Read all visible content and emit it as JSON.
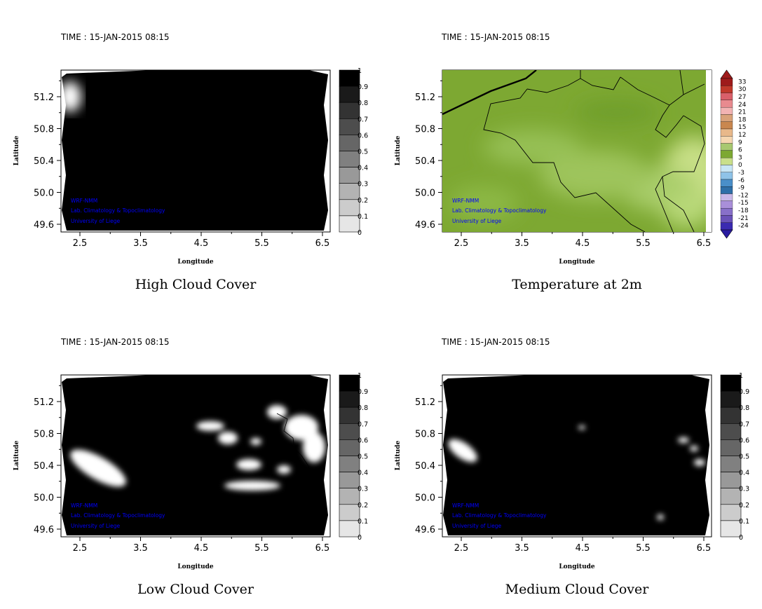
{
  "colors": {
    "background": "#ffffff",
    "cloud_black": "#000000",
    "temperature_field": "#7da832",
    "watermark": "#0000ff"
  },
  "watermark": {
    "line1": "WRF-NMM",
    "line2": "Lab. Climatology & Topoclimatology",
    "line3": "University of Liege"
  },
  "panels": [
    {
      "time_label": "TIME : 15-JAN-2015 08:15",
      "title": "High Cloud Cover",
      "xlabel": "Longitude",
      "ylabel": "Latitude",
      "x_ticks": [
        "2.5",
        "3.5",
        "4.5",
        "5.5",
        "6.5"
      ],
      "y_ticks": [
        "51.2",
        "50.8",
        "50.4",
        "50.0",
        "49.6"
      ],
      "colorbar_labels": [
        "1",
        "0.9",
        "0.8",
        "0.7",
        "0.6",
        "0.5",
        "0.4",
        "0.3",
        "0.2",
        "0.1",
        "0"
      ]
    },
    {
      "time_label": "TIME : 15-JAN-2015 08:15",
      "title": "Temperature at 2m",
      "xlabel": "Longitude",
      "ylabel": "Latitude",
      "x_ticks": [
        "2.5",
        "3.5",
        "4.5",
        "5.5",
        "6.5"
      ],
      "y_ticks": [
        "51.2",
        "50.8",
        "50.4",
        "50.0",
        "49.6"
      ],
      "colorbar_labels": [
        "33",
        "30",
        "27",
        "24",
        "21",
        "18",
        "15",
        "12",
        "9",
        "6",
        "3",
        "0",
        "-3",
        "-6",
        "-9",
        "-12",
        "-15",
        "-18",
        "-21",
        "-24"
      ]
    },
    {
      "time_label": "TIME : 15-JAN-2015 08:15",
      "title": "Low Cloud Cover",
      "xlabel": "Longitude",
      "ylabel": "Latitude",
      "x_ticks": [
        "2.5",
        "3.5",
        "4.5",
        "5.5",
        "6.5"
      ],
      "y_ticks": [
        "51.2",
        "50.8",
        "50.4",
        "50.0",
        "49.6"
      ],
      "colorbar_labels": [
        "1",
        "0.9",
        "0.8",
        "0.7",
        "0.6",
        "0.5",
        "0.4",
        "0.3",
        "0.2",
        "0.1",
        "0"
      ]
    },
    {
      "time_label": "TIME : 15-JAN-2015 08:15",
      "title": "Medium Cloud Cover",
      "xlabel": "Longitude",
      "ylabel": "Latitude",
      "x_ticks": [
        "2.5",
        "3.5",
        "4.5",
        "5.5",
        "6.5"
      ],
      "y_ticks": [
        "51.2",
        "50.8",
        "50.4",
        "50.0",
        "49.6"
      ],
      "colorbar_labels": [
        "1",
        "0.9",
        "0.8",
        "0.7",
        "0.6",
        "0.5",
        "0.4",
        "0.3",
        "0.2",
        "0.1",
        "0"
      ]
    }
  ]
}
